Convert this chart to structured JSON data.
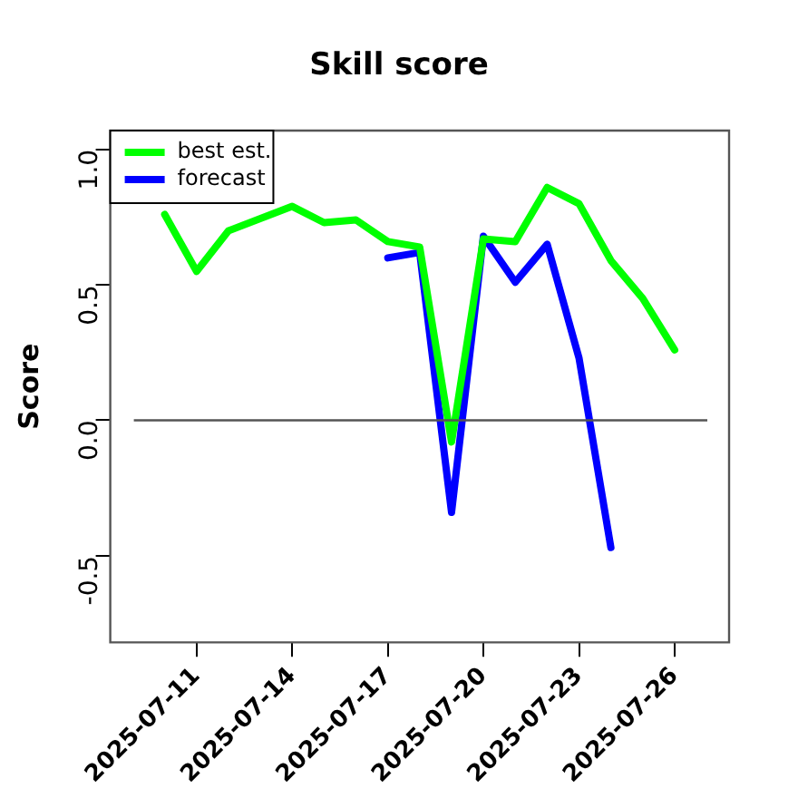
{
  "chart_data": {
    "type": "line",
    "title": "Skill score",
    "ylabel": "Score",
    "x": [
      "2025-07-10",
      "2025-07-11",
      "2025-07-12",
      "2025-07-13",
      "2025-07-14",
      "2025-07-15",
      "2025-07-16",
      "2025-07-17",
      "2025-07-18",
      "2025-07-19",
      "2025-07-20",
      "2025-07-21",
      "2025-07-22",
      "2025-07-23",
      "2025-07-24",
      "2025-07-25",
      "2025-07-26"
    ],
    "series": [
      {
        "name": "best est.",
        "color": "#00ff00",
        "values": [
          0.76,
          0.55,
          0.7,
          null,
          0.79,
          0.73,
          0.74,
          0.66,
          0.64,
          -0.08,
          0.67,
          0.66,
          0.86,
          0.8,
          0.59,
          0.45,
          0.26
        ]
      },
      {
        "name": "forecast",
        "color": "#0000ff",
        "values": [
          null,
          null,
          null,
          null,
          null,
          null,
          null,
          0.6,
          0.62,
          -0.34,
          0.68,
          0.51,
          0.65,
          0.23,
          -0.47,
          null,
          null
        ]
      }
    ],
    "xlim": [
      "2025-07-08T07:00",
      "2025-07-27T17:00"
    ],
    "xticks": [
      "2025-07-11",
      "2025-07-14",
      "2025-07-17",
      "2025-07-20",
      "2025-07-23",
      "2025-07-26"
    ],
    "ylim": [
      -0.82,
      1.07
    ],
    "yticks": [
      {
        "value": -0.5,
        "label": "-0.5"
      },
      {
        "value": 0,
        "label": "0.0"
      },
      {
        "value": 0.5,
        "label": "0.5"
      },
      {
        "value": 1,
        "label": "1.0"
      }
    ],
    "ref_lines": [
      {
        "axis": "y",
        "value": 0,
        "color": "#555555"
      }
    ],
    "legend": "top left",
    "grid": false,
    "marker": "none",
    "line_style": "solid"
  }
}
